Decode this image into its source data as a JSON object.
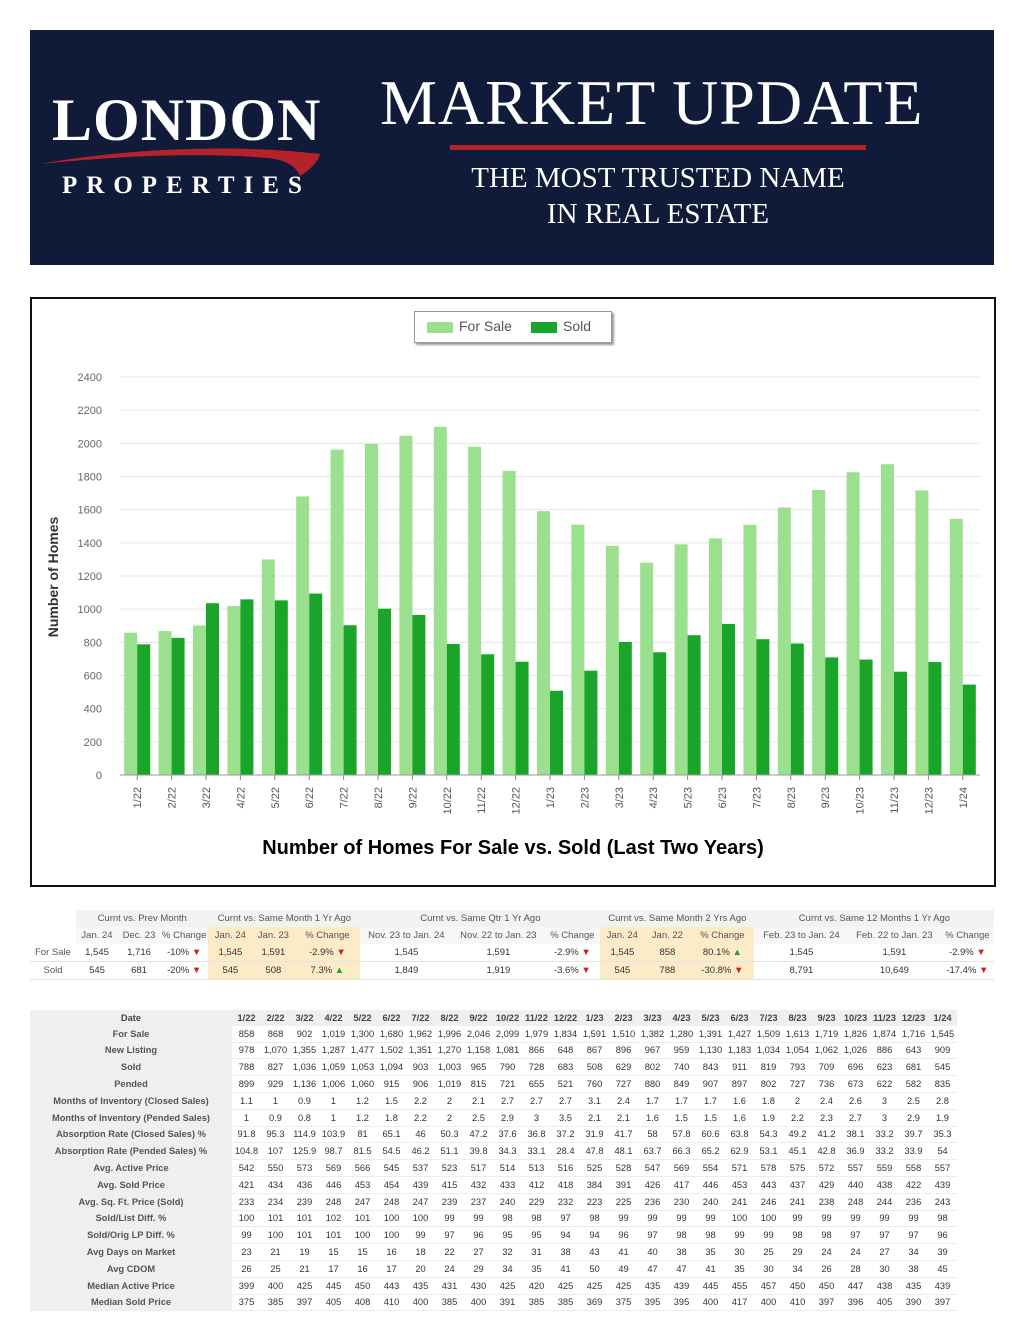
{
  "header": {
    "logo_name": "LONDON",
    "logo_sub": "PROPERTIES",
    "title": "MARKET UPDATE",
    "tagline_line1": "THE MOST TRUSTED NAME",
    "tagline_line2": "IN REAL ESTATE",
    "colors": {
      "background": "#0f1b38",
      "accent": "#b5232a"
    }
  },
  "chart_data": {
    "type": "bar",
    "title": "Number of Homes For Sale vs. Sold (Last Two Years)",
    "xlabel": "",
    "ylabel": "Number of Homes",
    "ylim": [
      0,
      2400
    ],
    "yticks": [
      0,
      200,
      400,
      600,
      800,
      1000,
      1200,
      1400,
      1600,
      1800,
      2000,
      2200,
      2400
    ],
    "grid": true,
    "legend_position": "top-center",
    "categories": [
      "1/22",
      "2/22",
      "3/22",
      "4/22",
      "5/22",
      "6/22",
      "7/22",
      "8/22",
      "9/22",
      "10/22",
      "11/22",
      "12/22",
      "1/23",
      "2/23",
      "3/23",
      "4/23",
      "5/23",
      "6/23",
      "7/23",
      "8/23",
      "9/23",
      "10/23",
      "11/23",
      "12/23",
      "1/24"
    ],
    "series": [
      {
        "name": "For Sale",
        "color": "#9be08e",
        "values": [
          858,
          868,
          902,
          1019,
          1300,
          1680,
          1962,
          1996,
          2046,
          2099,
          1979,
          1834,
          1591,
          1510,
          1382,
          1280,
          1391,
          1427,
          1509,
          1613,
          1719,
          1826,
          1874,
          1716,
          1545
        ]
      },
      {
        "name": "Sold",
        "color": "#1aa52a",
        "values": [
          788,
          827,
          1036,
          1059,
          1053,
          1094,
          903,
          1003,
          965,
          790,
          728,
          683,
          508,
          629,
          802,
          740,
          843,
          911,
          819,
          793,
          709,
          696,
          623,
          681,
          545
        ]
      }
    ]
  },
  "summary": {
    "groups": [
      "Curnt vs. Prev Month",
      "Curnt vs. Same Month 1 Yr Ago",
      "Curnt vs. Same Qtr 1 Yr Ago",
      "Curnt vs. Same Month 2 Yrs Ago",
      "Curnt vs. Same 12 Months 1 Yr Ago"
    ],
    "headers": [
      "Jan. 24",
      "Dec. 23",
      "% Change",
      "Jan. 24",
      "Jan. 23",
      "% Change",
      "Nov. 23 to Jan. 24",
      "Nov. 22 to Jan. 23",
      "% Change",
      "Jan. 24",
      "Jan. 22",
      "% Change",
      "Feb. 23 to Jan. 24",
      "Feb. 22 to Jan. 23",
      "% Change"
    ],
    "rows": [
      {
        "label": "For Sale",
        "cells": [
          "1,545",
          "1,716",
          "-10%",
          "1,545",
          "1,591",
          "-2.9%",
          "1,545",
          "1,591",
          "-2.9%",
          "1,545",
          "858",
          "80.1%",
          "1,545",
          "1,591",
          "-2.9%"
        ],
        "dirs": [
          "down",
          "down",
          "down",
          "up",
          "down"
        ]
      },
      {
        "label": "Sold",
        "cells": [
          "545",
          "681",
          "-20%",
          "545",
          "508",
          "7.3%",
          "1,849",
          "1,919",
          "-3.6%",
          "545",
          "788",
          "-30.8%",
          "8,791",
          "10,649",
          "-17.4%"
        ],
        "dirs": [
          "down",
          "up",
          "down",
          "down",
          "down"
        ]
      }
    ]
  },
  "stats": {
    "header_label": "Date",
    "dates": [
      "1/22",
      "2/22",
      "3/22",
      "4/22",
      "5/22",
      "6/22",
      "7/22",
      "8/22",
      "9/22",
      "10/22",
      "11/22",
      "12/22",
      "1/23",
      "2/23",
      "3/23",
      "4/23",
      "5/23",
      "6/23",
      "7/23",
      "8/23",
      "9/23",
      "10/23",
      "11/23",
      "12/23",
      "1/24"
    ],
    "rows": [
      {
        "label": "For Sale",
        "values": [
          "858",
          "868",
          "902",
          "1,019",
          "1,300",
          "1,680",
          "1,962",
          "1,996",
          "2,046",
          "2,099",
          "1,979",
          "1,834",
          "1,591",
          "1,510",
          "1,382",
          "1,280",
          "1,391",
          "1,427",
          "1,509",
          "1,613",
          "1,719",
          "1,826",
          "1,874",
          "1,716",
          "1,545"
        ]
      },
      {
        "label": "New Listing",
        "values": [
          "978",
          "1,070",
          "1,355",
          "1,287",
          "1,477",
          "1,502",
          "1,351",
          "1,270",
          "1,158",
          "1,081",
          "866",
          "648",
          "867",
          "896",
          "967",
          "959",
          "1,130",
          "1,183",
          "1,034",
          "1,054",
          "1,062",
          "1,026",
          "886",
          "643",
          "909"
        ]
      },
      {
        "label": "Sold",
        "values": [
          "788",
          "827",
          "1,036",
          "1,059",
          "1,053",
          "1,094",
          "903",
          "1,003",
          "965",
          "790",
          "728",
          "683",
          "508",
          "629",
          "802",
          "740",
          "843",
          "911",
          "819",
          "793",
          "709",
          "696",
          "623",
          "681",
          "545"
        ]
      },
      {
        "label": "Pended",
        "values": [
          "899",
          "929",
          "1,136",
          "1,006",
          "1,060",
          "915",
          "906",
          "1,019",
          "815",
          "721",
          "655",
          "521",
          "760",
          "727",
          "880",
          "849",
          "907",
          "897",
          "802",
          "727",
          "736",
          "673",
          "622",
          "582",
          "835"
        ]
      },
      {
        "label": "Months of Inventory (Closed Sales)",
        "values": [
          "1.1",
          "1",
          "0.9",
          "1",
          "1.2",
          "1.5",
          "2.2",
          "2",
          "2.1",
          "2.7",
          "2.7",
          "2.7",
          "3.1",
          "2.4",
          "1.7",
          "1.7",
          "1.7",
          "1.6",
          "1.8",
          "2",
          "2.4",
          "2.6",
          "3",
          "2.5",
          "2.8"
        ]
      },
      {
        "label": "Months of Inventory (Pended Sales)",
        "values": [
          "1",
          "0.9",
          "0.8",
          "1",
          "1.2",
          "1.8",
          "2.2",
          "2",
          "2.5",
          "2.9",
          "3",
          "3.5",
          "2.1",
          "2.1",
          "1.6",
          "1.5",
          "1.5",
          "1.6",
          "1.9",
          "2.2",
          "2.3",
          "2.7",
          "3",
          "2.9",
          "1.9"
        ]
      },
      {
        "label": "Absorption Rate (Closed Sales) %",
        "values": [
          "91.8",
          "95.3",
          "114.9",
          "103.9",
          "81",
          "65.1",
          "46",
          "50.3",
          "47.2",
          "37.6",
          "36.8",
          "37.2",
          "31.9",
          "41.7",
          "58",
          "57.8",
          "60.6",
          "63.8",
          "54.3",
          "49.2",
          "41.2",
          "38.1",
          "33.2",
          "39.7",
          "35.3"
        ]
      },
      {
        "label": "Absorption Rate (Pended Sales) %",
        "values": [
          "104.8",
          "107",
          "125.9",
          "98.7",
          "81.5",
          "54.5",
          "46.2",
          "51.1",
          "39.8",
          "34.3",
          "33.1",
          "28.4",
          "47.8",
          "48.1",
          "63.7",
          "66.3",
          "65.2",
          "62.9",
          "53.1",
          "45.1",
          "42.8",
          "36.9",
          "33.2",
          "33.9",
          "54"
        ]
      },
      {
        "label": "Avg. Active Price",
        "values": [
          "542",
          "550",
          "573",
          "569",
          "566",
          "545",
          "537",
          "523",
          "517",
          "514",
          "513",
          "516",
          "525",
          "528",
          "547",
          "569",
          "554",
          "571",
          "578",
          "575",
          "572",
          "557",
          "559",
          "558",
          "557"
        ]
      },
      {
        "label": "Avg. Sold Price",
        "values": [
          "421",
          "434",
          "436",
          "446",
          "453",
          "454",
          "439",
          "415",
          "432",
          "433",
          "412",
          "418",
          "384",
          "391",
          "426",
          "417",
          "446",
          "453",
          "443",
          "437",
          "429",
          "440",
          "438",
          "422",
          "439"
        ]
      },
      {
        "label": "Avg. Sq. Ft. Price (Sold)",
        "values": [
          "233",
          "234",
          "239",
          "248",
          "247",
          "248",
          "247",
          "239",
          "237",
          "240",
          "229",
          "232",
          "223",
          "225",
          "236",
          "230",
          "240",
          "241",
          "246",
          "241",
          "238",
          "248",
          "244",
          "236",
          "243"
        ]
      },
      {
        "label": "Sold/List Diff. %",
        "values": [
          "100",
          "101",
          "101",
          "102",
          "101",
          "100",
          "100",
          "99",
          "99",
          "98",
          "98",
          "97",
          "98",
          "99",
          "99",
          "99",
          "99",
          "100",
          "100",
          "99",
          "99",
          "99",
          "99",
          "99",
          "98"
        ]
      },
      {
        "label": "Sold/Orig LP Diff. %",
        "values": [
          "99",
          "100",
          "101",
          "101",
          "100",
          "100",
          "99",
          "97",
          "96",
          "95",
          "95",
          "94",
          "94",
          "96",
          "97",
          "98",
          "98",
          "99",
          "99",
          "98",
          "98",
          "97",
          "97",
          "97",
          "96"
        ]
      },
      {
        "label": "Avg Days on Market",
        "values": [
          "23",
          "21",
          "19",
          "15",
          "15",
          "16",
          "18",
          "22",
          "27",
          "32",
          "31",
          "38",
          "43",
          "41",
          "40",
          "38",
          "35",
          "30",
          "25",
          "29",
          "24",
          "24",
          "27",
          "34",
          "39"
        ]
      },
      {
        "label": "Avg CDOM",
        "values": [
          "26",
          "25",
          "21",
          "17",
          "16",
          "17",
          "20",
          "24",
          "29",
          "34",
          "35",
          "41",
          "50",
          "49",
          "47",
          "47",
          "41",
          "35",
          "30",
          "34",
          "26",
          "28",
          "30",
          "38",
          "45"
        ]
      },
      {
        "label": "Median Active Price",
        "values": [
          "399",
          "400",
          "425",
          "445",
          "450",
          "443",
          "435",
          "431",
          "430",
          "425",
          "420",
          "425",
          "425",
          "425",
          "435",
          "439",
          "445",
          "455",
          "457",
          "450",
          "450",
          "447",
          "438",
          "435",
          "439"
        ]
      },
      {
        "label": "Median Sold Price",
        "values": [
          "375",
          "385",
          "397",
          "405",
          "408",
          "410",
          "400",
          "385",
          "400",
          "391",
          "385",
          "385",
          "369",
          "375",
          "395",
          "395",
          "400",
          "417",
          "400",
          "410",
          "397",
          "396",
          "405",
          "390",
          "397"
        ]
      }
    ]
  }
}
